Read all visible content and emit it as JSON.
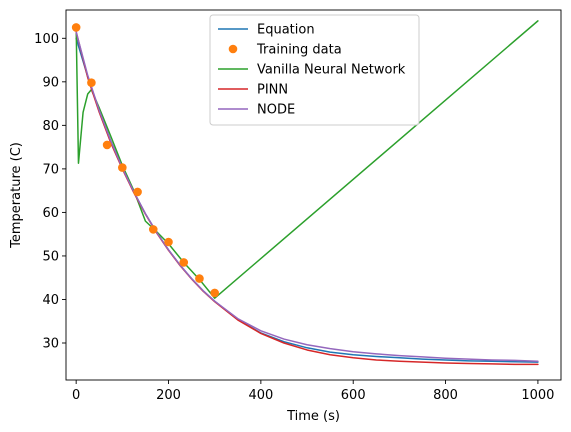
{
  "chart_data": {
    "type": "line",
    "title": "",
    "xlabel": "Time (s)",
    "ylabel": "Temperature (C)",
    "xlim": [
      -22,
      1050
    ],
    "ylim": [
      21.5,
      106.5
    ],
    "xticks": [
      0,
      200,
      400,
      600,
      800,
      1000
    ],
    "yticks": [
      30,
      40,
      50,
      60,
      70,
      80,
      90,
      100
    ],
    "grid": false,
    "legend_position": "top-center",
    "series": [
      {
        "name": "Equation",
        "kind": "line",
        "color": "#1f77b4",
        "x": [
          0,
          25,
          50,
          75,
          100,
          125,
          150,
          175,
          200,
          225,
          250,
          275,
          300,
          350,
          400,
          450,
          500,
          550,
          600,
          650,
          700,
          750,
          800,
          850,
          900,
          950,
          1000
        ],
        "y": [
          100.0,
          91.2,
          83.4,
          76.4,
          70.2,
          64.7,
          59.7,
          55.3,
          51.4,
          47.9,
          44.8,
          42.0,
          39.6,
          35.4,
          32.3,
          30.3,
          28.9,
          27.9,
          27.3,
          26.9,
          26.6,
          26.3,
          26.1,
          25.9,
          25.8,
          25.7,
          25.6
        ]
      },
      {
        "name": "Training data",
        "kind": "scatter",
        "color": "#ff7f0e",
        "x": [
          0,
          33,
          67,
          100,
          133,
          167,
          200,
          233,
          267,
          300
        ],
        "y": [
          102.5,
          89.8,
          75.5,
          70.3,
          64.7,
          56.1,
          53.2,
          48.5,
          44.8,
          41.5
        ]
      },
      {
        "name": "Vanilla Neural Network",
        "kind": "line",
        "color": "#2ca02c",
        "x": [
          0,
          5,
          15,
          25,
          33,
          50,
          75,
          100,
          125,
          150,
          175,
          200,
          233,
          267,
          300,
          1000
        ],
        "y": [
          102.5,
          71.3,
          83.0,
          87.2,
          88.2,
          84.0,
          77.5,
          70.8,
          65.0,
          58.0,
          55.5,
          52.8,
          48.5,
          44.6,
          40.3,
          104.0
        ]
      },
      {
        "name": "PINN",
        "kind": "line",
        "color": "#d62728",
        "x": [
          0,
          25,
          50,
          75,
          100,
          125,
          150,
          175,
          200,
          225,
          250,
          275,
          300,
          350,
          400,
          450,
          500,
          550,
          600,
          650,
          700,
          750,
          800,
          850,
          900,
          950,
          1000
        ],
        "y": [
          101.5,
          91.0,
          83.0,
          76.0,
          70.0,
          64.5,
          59.6,
          55.2,
          51.3,
          47.8,
          44.7,
          41.9,
          39.5,
          35.3,
          32.2,
          30.0,
          28.4,
          27.3,
          26.6,
          26.1,
          25.8,
          25.6,
          25.4,
          25.3,
          25.2,
          25.1,
          25.1
        ]
      },
      {
        "name": "NODE",
        "kind": "line",
        "color": "#9467bd",
        "x": [
          0,
          25,
          50,
          75,
          100,
          125,
          150,
          175,
          200,
          225,
          250,
          275,
          300,
          350,
          400,
          450,
          500,
          550,
          600,
          650,
          700,
          750,
          800,
          850,
          900,
          950,
          1000
        ],
        "y": [
          101.5,
          91.5,
          83.4,
          76.4,
          70.2,
          64.7,
          59.7,
          55.3,
          51.4,
          47.9,
          44.8,
          42.0,
          39.6,
          35.6,
          32.8,
          30.9,
          29.6,
          28.7,
          28.0,
          27.5,
          27.1,
          26.8,
          26.5,
          26.3,
          26.1,
          26.0,
          25.8
        ]
      }
    ]
  }
}
